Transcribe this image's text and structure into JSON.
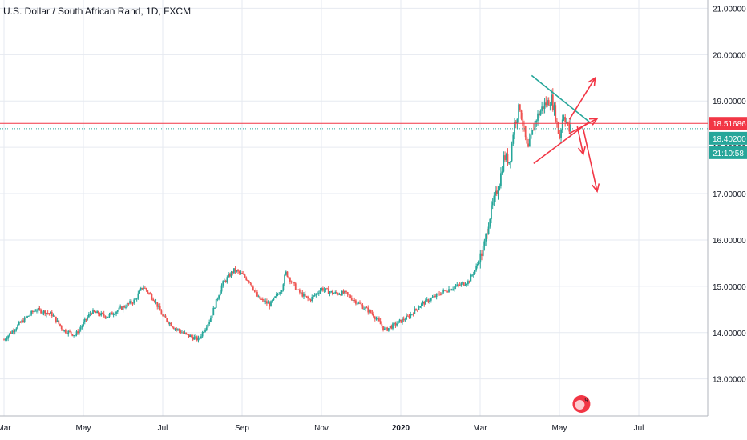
{
  "chart_data": {
    "type": "candlestick",
    "title": "U.S. Dollar / South African Rand, 1D, FXCM",
    "y_axis": {
      "position": "right",
      "ylim": [
        12.2,
        21.18
      ],
      "ticks": [
        "13.00000",
        "14.00000",
        "15.00000",
        "16.00000",
        "17.00000",
        "18.00000",
        "19.00000",
        "20.00000",
        "21.00000"
      ],
      "tick_values": [
        13,
        14,
        15,
        16,
        17,
        18,
        19,
        20,
        21
      ]
    },
    "x_axis": {
      "ticks": [
        "Mar",
        "May",
        "Jul",
        "Sep",
        "Nov",
        "2020",
        "Mar",
        "May",
        "Jul"
      ],
      "tick_months": [
        0,
        2,
        4,
        6,
        8,
        10,
        12,
        14,
        16
      ],
      "range_months": [
        0,
        17.7
      ]
    },
    "price_path": [
      [
        0.0,
        13.85
      ],
      [
        0.4,
        14.2
      ],
      [
        0.8,
        14.5
      ],
      [
        1.2,
        14.4
      ],
      [
        1.5,
        14.05
      ],
      [
        1.8,
        13.95
      ],
      [
        2.2,
        14.45
      ],
      [
        2.6,
        14.35
      ],
      [
        3.0,
        14.55
      ],
      [
        3.3,
        14.7
      ],
      [
        3.5,
        15.0
      ],
      [
        3.8,
        14.7
      ],
      [
        4.0,
        14.35
      ],
      [
        4.3,
        14.1
      ],
      [
        4.6,
        13.95
      ],
      [
        4.9,
        13.85
      ],
      [
        5.2,
        14.3
      ],
      [
        5.5,
        15.05
      ],
      [
        5.8,
        15.35
      ],
      [
        6.0,
        15.25
      ],
      [
        6.2,
        15.1
      ],
      [
        6.4,
        14.75
      ],
      [
        6.7,
        14.6
      ],
      [
        7.0,
        14.95
      ],
      [
        7.1,
        15.3
      ],
      [
        7.4,
        14.9
      ],
      [
        7.7,
        14.7
      ],
      [
        8.0,
        14.95
      ],
      [
        8.3,
        14.85
      ],
      [
        8.6,
        14.85
      ],
      [
        8.9,
        14.65
      ],
      [
        9.3,
        14.4
      ],
      [
        9.6,
        14.05
      ],
      [
        9.9,
        14.2
      ],
      [
        10.2,
        14.35
      ],
      [
        10.5,
        14.6
      ],
      [
        10.8,
        14.75
      ],
      [
        11.1,
        14.9
      ],
      [
        11.4,
        15.0
      ],
      [
        11.7,
        15.1
      ],
      [
        11.9,
        15.4
      ],
      [
        12.1,
        15.85
      ],
      [
        12.2,
        16.35
      ],
      [
        12.3,
        16.7
      ],
      [
        12.5,
        17.3
      ],
      [
        12.6,
        17.8
      ],
      [
        12.75,
        17.7
      ],
      [
        12.85,
        18.45
      ],
      [
        13.0,
        18.9
      ],
      [
        13.2,
        17.9
      ],
      [
        13.4,
        18.6
      ],
      [
        13.6,
        18.9
      ],
      [
        13.8,
        19.05
      ],
      [
        13.9,
        18.7
      ],
      [
        14.0,
        18.2
      ],
      [
        14.1,
        18.75
      ],
      [
        14.25,
        18.35
      ],
      [
        14.3,
        18.45
      ]
    ],
    "horizontal_lines": [
      {
        "value": 18.51686,
        "label": "18.51686",
        "color": "#f23645",
        "style": "solid"
      },
      {
        "value": 18.402,
        "label": "18.40200",
        "color": "#26a69a",
        "style": "dotted"
      }
    ],
    "countdown_label": "21:10:58",
    "drawings": {
      "triangle_upper": {
        "from": [
          13.3,
          19.55
        ],
        "to": [
          14.75,
          18.55
        ],
        "color": "#26a69a"
      },
      "triangle_lower": {
        "from": [
          13.35,
          17.65
        ],
        "to": [
          14.75,
          18.55
        ],
        "color": "#f23645"
      },
      "arrows": [
        {
          "from": [
            14.25,
            18.3
          ],
          "to": [
            14.95,
            18.62
          ]
        },
        {
          "from": [
            14.25,
            18.6
          ],
          "to": [
            14.9,
            19.5
          ]
        },
        {
          "from": [
            14.45,
            18.45
          ],
          "to": [
            14.6,
            17.85
          ]
        },
        {
          "from": [
            14.6,
            18.4
          ],
          "to": [
            14.95,
            17.05
          ]
        }
      ],
      "arrow_color": "#f23645"
    },
    "event_marker": {
      "month": 14.15,
      "count": "9"
    },
    "colors": {
      "up": "#26a69a",
      "down": "#ef5350",
      "grid": "#e6eaf0",
      "axis_text": "#131722"
    },
    "grid": true
  }
}
